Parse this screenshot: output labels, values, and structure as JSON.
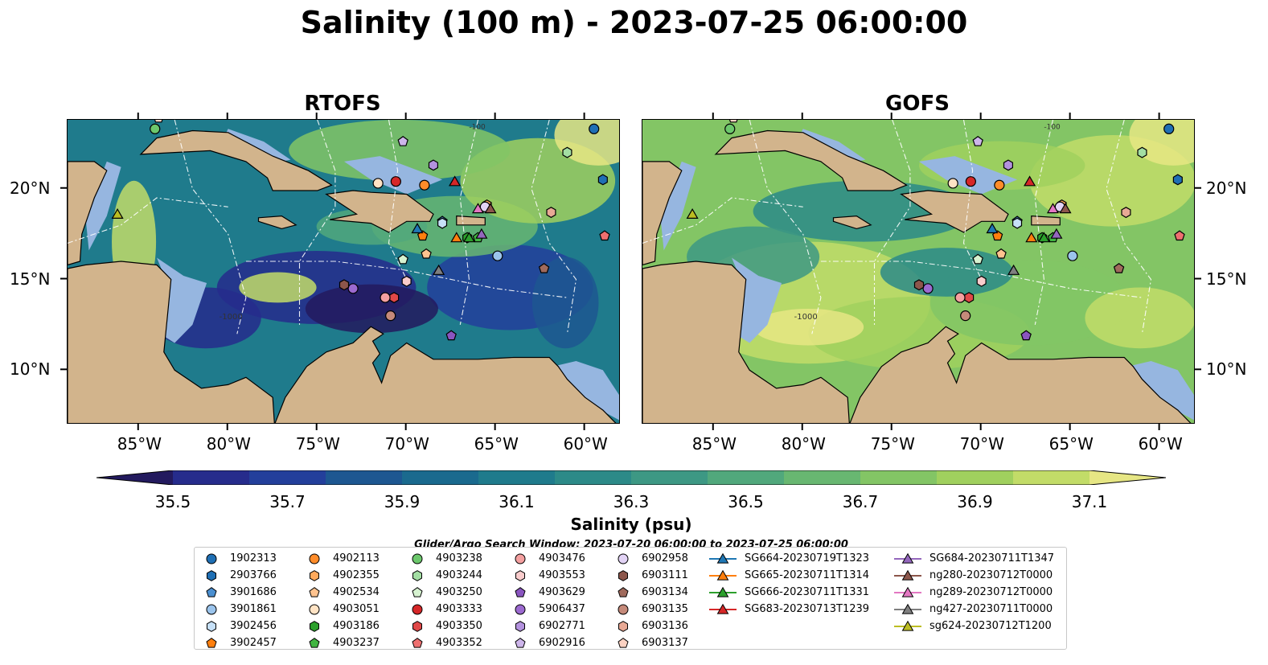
{
  "title": "Salinity (100 m) - 2023-07-25 06:00:00",
  "panels": [
    {
      "title": "RTOFS",
      "model": "rtofs"
    },
    {
      "title": "GOFS",
      "model": "gofs"
    }
  ],
  "x_ticks": [
    "85°W",
    "80°W",
    "75°W",
    "70°W",
    "65°W",
    "60°W"
  ],
  "y_ticks": [
    "20°N",
    "15°N",
    "10°N"
  ],
  "extent": {
    "lon_min": -89,
    "lon_max": -58,
    "lat_min": 7,
    "lat_max": 23.8
  },
  "colorbar": {
    "label": "Salinity (psu)",
    "ticks": [
      "35.5",
      "35.7",
      "35.9",
      "36.1",
      "36.3",
      "36.5",
      "36.7",
      "36.9",
      "37.1"
    ],
    "min": 35.4,
    "max": 37.2,
    "colors": [
      "#231a5e",
      "#262c8c",
      "#233f9b",
      "#1d5791",
      "#1a6a8e",
      "#1f7b8c",
      "#2c8a88",
      "#3d9884",
      "#51a87c",
      "#68b771",
      "#83c565",
      "#a0d05e",
      "#c2dc68",
      "#e6e684"
    ]
  },
  "bathymetry_contour_labels": [
    "-100",
    "-1000"
  ],
  "search_window": "Glider/Argo Search Window: 2023-07-20 06:00:00 to 2023-07-25 06:00:00",
  "legend": [
    {
      "label": "1902313",
      "marker": "circle",
      "color": "#1f6fb4"
    },
    {
      "label": "2903766",
      "marker": "hexagon",
      "color": "#1f6fb4"
    },
    {
      "label": "3901686",
      "marker": "pentagon",
      "color": "#4a8fd0"
    },
    {
      "label": "3901861",
      "marker": "circle",
      "color": "#9bc4ec"
    },
    {
      "label": "3902456",
      "marker": "hexagon",
      "color": "#c6e0f7"
    },
    {
      "label": "3902457",
      "marker": "pentagon",
      "color": "#ff7f0e"
    },
    {
      "label": "4902113",
      "marker": "circle",
      "color": "#ff8c2a"
    },
    {
      "label": "4902355",
      "marker": "hexagon",
      "color": "#ffa95c"
    },
    {
      "label": "4902534",
      "marker": "pentagon",
      "color": "#ffc38f"
    },
    {
      "label": "4903051",
      "marker": "circle",
      "color": "#ffe3c4"
    },
    {
      "label": "4903186",
      "marker": "hexagon",
      "color": "#2ca02c"
    },
    {
      "label": "4903237",
      "marker": "pentagon",
      "color": "#41b541"
    },
    {
      "label": "4903238",
      "marker": "circle",
      "color": "#6cc86c"
    },
    {
      "label": "4903244",
      "marker": "hexagon",
      "color": "#a3dea3"
    },
    {
      "label": "4903250",
      "marker": "pentagon",
      "color": "#d6f2d0"
    },
    {
      "label": "4903333",
      "marker": "circle",
      "color": "#d62728"
    },
    {
      "label": "4903350",
      "marker": "hexagon",
      "color": "#e04848"
    },
    {
      "label": "4903352",
      "marker": "pentagon",
      "color": "#ee7070"
    },
    {
      "label": "4903476",
      "marker": "circle",
      "color": "#f4a0a0"
    },
    {
      "label": "4903553",
      "marker": "hexagon",
      "color": "#f9cccc"
    },
    {
      "label": "4903629",
      "marker": "pentagon",
      "color": "#8a55c0"
    },
    {
      "label": "5906437",
      "marker": "circle",
      "color": "#9c6ad0"
    },
    {
      "label": "6902771",
      "marker": "hexagon",
      "color": "#b392de"
    },
    {
      "label": "6902916",
      "marker": "pentagon",
      "color": "#cdb5ea"
    },
    {
      "label": "6902958",
      "marker": "circle",
      "color": "#e2d3f5"
    },
    {
      "label": "6903111",
      "marker": "hexagon",
      "color": "#8c564b"
    },
    {
      "label": "6903134",
      "marker": "pentagon",
      "color": "#a06a5c"
    },
    {
      "label": "6903135",
      "marker": "circle",
      "color": "#c58a7a"
    },
    {
      "label": "6903136",
      "marker": "hexagon",
      "color": "#e8a995"
    },
    {
      "label": "6903137",
      "marker": "pentagon",
      "color": "#fcd2c2"
    },
    {
      "label": "SG664-20230719T1323",
      "marker": "triangle",
      "color": "#1f77b4"
    },
    {
      "label": "SG665-20230711T1314",
      "marker": "triangle",
      "color": "#ff7f0e"
    },
    {
      "label": "SG666-20230711T1331",
      "marker": "triangle",
      "color": "#2ca02c"
    },
    {
      "label": "SG683-20230713T1239",
      "marker": "triangle",
      "color": "#d62728"
    },
    {
      "label": "SG684-20230711T1347",
      "marker": "triangle",
      "color": "#9467bd"
    },
    {
      "label": "ng280-20230712T0000",
      "marker": "triangle",
      "color": "#8c564b"
    },
    {
      "label": "ng289-20230712T0000",
      "marker": "triangle",
      "color": "#e377c2"
    },
    {
      "label": "ng427-20230711T0000",
      "marker": "triangle",
      "color": "#7f7f7f"
    },
    {
      "label": "sg624-20230712T1200",
      "marker": "triangle",
      "color": "#bcbd22"
    }
  ],
  "observations": [
    {
      "id": "1902313",
      "lon": -59.5,
      "lat": 23.3
    },
    {
      "id": "2903766",
      "lon": -59.0,
      "lat": 20.5
    },
    {
      "id": "3901686",
      "lon": -68.0,
      "lat": 18.2
    },
    {
      "id": "3901861",
      "lon": -64.9,
      "lat": 16.3
    },
    {
      "id": "3902456",
      "lon": -68.0,
      "lat": 18.1
    },
    {
      "id": "3902457",
      "lon": -69.1,
      "lat": 17.4
    },
    {
      "id": "4902113",
      "lon": -69.0,
      "lat": 20.2
    },
    {
      "id": "4902355",
      "lon": -65.5,
      "lat": 19.1
    },
    {
      "id": "4902534",
      "lon": -68.9,
      "lat": 16.4
    },
    {
      "id": "4903051",
      "lon": -71.6,
      "lat": 20.3
    },
    {
      "id": "4903186",
      "lon": -66.6,
      "lat": 17.3
    },
    {
      "id": "4903237",
      "lon": -66.0,
      "lat": 17.3
    },
    {
      "id": "4903238",
      "lon": -84.1,
      "lat": 23.3
    },
    {
      "id": "4903244",
      "lon": -61.0,
      "lat": 22.0
    },
    {
      "id": "4903250",
      "lon": -70.2,
      "lat": 16.1
    },
    {
      "id": "4903333",
      "lon": -70.6,
      "lat": 20.4
    },
    {
      "id": "4903350",
      "lon": -70.7,
      "lat": 14.0
    },
    {
      "id": "4903352",
      "lon": -58.9,
      "lat": 17.4
    },
    {
      "id": "4903476",
      "lon": -71.2,
      "lat": 14.0
    },
    {
      "id": "4903553",
      "lon": -70.0,
      "lat": 14.9
    },
    {
      "id": "4903629",
      "lon": -67.5,
      "lat": 11.9
    },
    {
      "id": "5906437",
      "lon": -73.0,
      "lat": 14.5
    },
    {
      "id": "6902771",
      "lon": -68.5,
      "lat": 21.3
    },
    {
      "id": "6902916",
      "lon": -70.2,
      "lat": 22.6
    },
    {
      "id": "6902958",
      "lon": -65.6,
      "lat": 19.0
    },
    {
      "id": "6903111",
      "lon": -73.5,
      "lat": 14.7
    },
    {
      "id": "6903134",
      "lon": -62.3,
      "lat": 15.6
    },
    {
      "id": "6903135",
      "lon": -70.9,
      "lat": 13.0
    },
    {
      "id": "6903136",
      "lon": -61.9,
      "lat": 18.7
    },
    {
      "id": "6903137",
      "lon": -83.9,
      "lat": 23.9
    },
    {
      "id": "SG664-20230719T1323",
      "lon": -69.4,
      "lat": 17.8
    },
    {
      "id": "SG665-20230711T1314",
      "lon": -67.2,
      "lat": 17.3
    },
    {
      "id": "SG666-20230711T1331",
      "lon": -66.5,
      "lat": 17.3
    },
    {
      "id": "SG683-20230713T1239",
      "lon": -67.3,
      "lat": 20.4
    },
    {
      "id": "SG684-20230711T1347",
      "lon": -65.8,
      "lat": 17.5
    },
    {
      "id": "ng280-20230712T0000",
      "lon": -65.3,
      "lat": 18.9
    },
    {
      "id": "ng289-20230712T0000",
      "lon": -66.0,
      "lat": 18.9
    },
    {
      "id": "ng427-20230711T0000",
      "lon": -68.2,
      "lat": 15.5
    },
    {
      "id": "sg624-20230712T1200",
      "lon": -86.2,
      "lat": 18.6
    }
  ]
}
